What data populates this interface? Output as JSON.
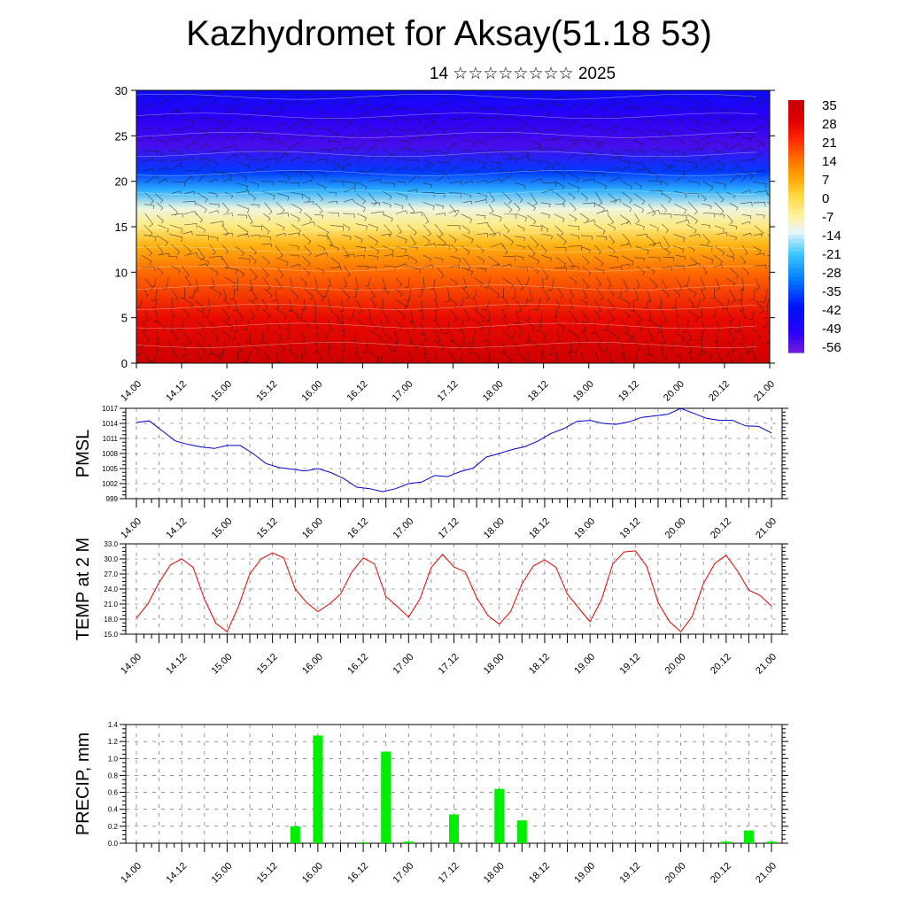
{
  "page": {
    "title": "Kazhydromet for Aksay(51.18 53)",
    "subtitle": "14 ☆☆☆☆☆☆☆☆ 2025"
  },
  "time_axis": {
    "tick_labels": [
      "14.00",
      "14.12",
      "15.00",
      "15.12",
      "16.00",
      "16.12",
      "17.00",
      "17.12",
      "18.00",
      "18.12",
      "19.00",
      "19.12",
      "20.00",
      "20.12",
      "21.00"
    ]
  },
  "colors": {
    "pmsl_line": "#0000cc",
    "temp_line": "#ee0000",
    "precip_bar": "#00ee00",
    "colorbar": [
      "#8a2be2",
      "#3a00f0",
      "#0000ff",
      "#0050ff",
      "#00a0ff",
      "#60d0ff",
      "#e0f4ff",
      "#fff8c0",
      "#ffe060",
      "#ffb000",
      "#ff7000",
      "#ff3000",
      "#e00000",
      "#ff8080",
      "#ffd8d8"
    ]
  },
  "chart_data": [
    {
      "type": "heatmap",
      "name": "vertical-section",
      "x_tick_labels": [
        "14.00",
        "14.12",
        "15.00",
        "15.12",
        "16.00",
        "16.12",
        "17.00",
        "17.12",
        "18.00",
        "18.12",
        "19.00",
        "19.12",
        "20.00",
        "20.12",
        "21.00"
      ],
      "ylim": [
        0,
        30
      ],
      "yticks": [
        "0",
        "5",
        "10",
        "15",
        "20",
        "25",
        "30"
      ],
      "colorbar_labels": [
        "35",
        "28",
        "21",
        "14",
        "7",
        "0",
        "-7",
        "-14",
        "-21",
        "-28",
        "-35",
        "-42",
        "-49",
        "-56"
      ],
      "profile": [
        {
          "level": 0,
          "value": 33
        },
        {
          "level": 5,
          "value": 26
        },
        {
          "level": 10,
          "value": 14
        },
        {
          "level": 13,
          "value": 5
        },
        {
          "level": 15,
          "value": -5
        },
        {
          "level": 17,
          "value": -12
        },
        {
          "level": 19,
          "value": -25
        },
        {
          "level": 21,
          "value": -38
        },
        {
          "level": 24,
          "value": -55
        },
        {
          "level": 27,
          "value": -52
        },
        {
          "level": 30,
          "value": -45
        }
      ]
    },
    {
      "type": "line",
      "name": "pmsl",
      "ylabel": "PMSL",
      "ylim": [
        999,
        1017
      ],
      "ytick_labels": [
        "999",
        "1002",
        "1005",
        "1008",
        "1011",
        "1014",
        "1017"
      ],
      "x_tick_labels": [
        "14.00",
        "14.12",
        "15.00",
        "15.12",
        "16.00",
        "16.12",
        "17.00",
        "17.12",
        "18.00",
        "18.12",
        "19.00",
        "19.12",
        "20.00",
        "20.12",
        "21.00"
      ],
      "values": [
        1014.2,
        1014.5,
        1012.5,
        1010.5,
        1009.8,
        1009.3,
        1009.0,
        1009.6,
        1009.6,
        1008.0,
        1006.0,
        1005.2,
        1004.9,
        1004.5,
        1005.0,
        1004.2,
        1003.0,
        1001.3,
        1001.0,
        1000.4,
        1001.0,
        1002.0,
        1002.3,
        1003.6,
        1003.4,
        1004.4,
        1005.1,
        1007.3,
        1008.0,
        1008.8,
        1009.4,
        1010.5,
        1012.0,
        1013.0,
        1014.4,
        1014.6,
        1014.0,
        1013.8,
        1014.3,
        1015.2,
        1015.5,
        1015.8,
        1017.0,
        1016.0,
        1015.0,
        1014.6,
        1014.6,
        1013.5,
        1013.4,
        1012.1
      ]
    },
    {
      "type": "line",
      "name": "temperature",
      "ylabel": "TEMP at 2 M",
      "ylim": [
        15,
        33
      ],
      "ytick_labels": [
        "15.0",
        "18.0",
        "21.0",
        "24.0",
        "27.0",
        "30.0",
        "33.0"
      ],
      "x_tick_labels": [
        "14.00",
        "14.12",
        "15.00",
        "15.12",
        "16.00",
        "16.12",
        "17.00",
        "17.12",
        "18.00",
        "18.12",
        "19.00",
        "19.12",
        "20.00",
        "20.12",
        "21.00"
      ],
      "values": [
        18.2,
        21.0,
        25.3,
        28.8,
        30.0,
        28.3,
        22.0,
        17.2,
        15.5,
        20.5,
        27.0,
        30.0,
        31.2,
        30.2,
        24.0,
        21.3,
        19.5,
        21.0,
        23.0,
        27.4,
        30.2,
        29.0,
        22.5,
        20.5,
        18.4,
        22.0,
        28.3,
        30.9,
        28.4,
        27.4,
        22.3,
        18.7,
        17.0,
        19.5,
        25.0,
        28.6,
        29.8,
        28.3,
        23.0,
        20.2,
        17.5,
        21.8,
        29.0,
        31.4,
        31.6,
        28.5,
        21.3,
        17.5,
        15.5,
        18.5,
        25.1,
        29.1,
        30.7,
        27.6,
        23.8,
        22.7,
        20.6
      ]
    },
    {
      "type": "bar",
      "name": "precipitation",
      "ylabel": "PRECIP, mm",
      "ylim": [
        0,
        1.4
      ],
      "ytick_labels": [
        "0.0",
        "0.2",
        "0.4",
        "0.6",
        "0.8",
        "1.0",
        "1.2",
        "1.4"
      ],
      "x_tick_labels": [
        "14.00",
        "14.12",
        "15.00",
        "15.12",
        "16.00",
        "16.12",
        "17.00",
        "17.12",
        "18.00",
        "18.12",
        "19.00",
        "19.12",
        "20.00",
        "20.12",
        "21.00"
      ],
      "bars": [
        {
          "t": 15.75,
          "value": 0.2
        },
        {
          "t": 16.0,
          "value": 1.27
        },
        {
          "t": 16.5,
          "value": 0.01
        },
        {
          "t": 16.75,
          "value": 1.08
        },
        {
          "t": 17.0,
          "value": 0.02
        },
        {
          "t": 17.5,
          "value": 0.34
        },
        {
          "t": 18.0,
          "value": 0.64
        },
        {
          "t": 18.25,
          "value": 0.27
        },
        {
          "t": 20.5,
          "value": 0.02
        },
        {
          "t": 20.75,
          "value": 0.15
        },
        {
          "t": 21.0,
          "value": 0.02
        }
      ]
    }
  ]
}
